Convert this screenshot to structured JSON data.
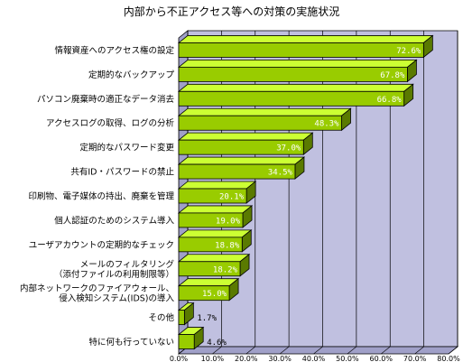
{
  "chart_data": {
    "type": "bar",
    "orientation": "horizontal",
    "title": "内部から不正アクセス等への対策の実施状況",
    "categories": [
      [
        "情報資産へのアクセス権の設定"
      ],
      [
        "定期的なバックアップ"
      ],
      [
        "パソコン廃棄時の適正なデータ消去"
      ],
      [
        "アクセスログの取得、ログの分析"
      ],
      [
        "定期的なパスワード変更"
      ],
      [
        "共有ID・パスワードの禁止"
      ],
      [
        "印刷物、電子媒体の持出、廃棄を管理"
      ],
      [
        "個人認証のためのシステム導入"
      ],
      [
        "ユーザアカウントの定期的なチェック"
      ],
      [
        "メールのフィルタリング",
        "（添付ファイルの利用制限等）"
      ],
      [
        "内部ネットワークのファイアウォール、",
        "侵入検知システム(IDS)の導入"
      ],
      [
        "その他"
      ],
      [
        "特に何も行っていない"
      ]
    ],
    "values": [
      72.6,
      67.8,
      66.8,
      48.3,
      37.0,
      34.5,
      20.1,
      19.0,
      18.8,
      18.2,
      15.0,
      1.7,
      4.6
    ],
    "value_labels": [
      "72.6%",
      "67.8%",
      "66.8%",
      "48.3%",
      "37.0%",
      "34.5%",
      "20.1%",
      "19.0%",
      "18.8%",
      "18.2%",
      "15.0%",
      "1.7%",
      "4.6%"
    ],
    "xlim": [
      0,
      80
    ],
    "xticks": [
      "0.0%",
      "10.0%",
      "20.0%",
      "30.0%",
      "40.0%",
      "50.0%",
      "60.0%",
      "70.0%",
      "80.0%"
    ],
    "grid": true,
    "colors": {
      "bar_front": "#99cc00",
      "bar_top": "#ccff33",
      "bar_side": "#5a7a00",
      "plot_back": "#c0c0e0",
      "plot_floor": "#a0a0c8"
    }
  }
}
